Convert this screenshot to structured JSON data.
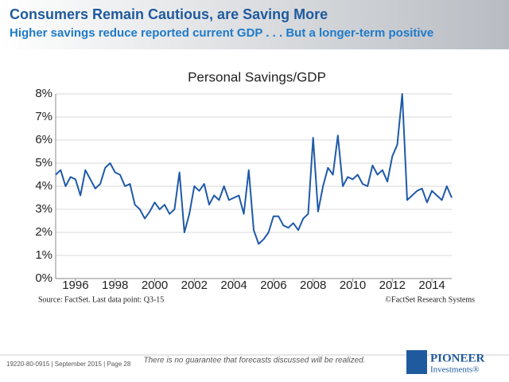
{
  "header": {
    "title": "Consumers Remain Cautious, are Saving More",
    "subtitle": "Higher savings reduce reported current GDP . . . But a longer-term positive"
  },
  "chart_data": {
    "type": "line",
    "title": "Personal Savings/GDP",
    "x": [
      1995,
      1995.25,
      1995.5,
      1995.75,
      1996,
      1996.25,
      1996.5,
      1996.75,
      1997,
      1997.25,
      1997.5,
      1997.75,
      1998,
      1998.25,
      1998.5,
      1998.75,
      1999,
      1999.25,
      1999.5,
      1999.75,
      2000,
      2000.25,
      2000.5,
      2000.75,
      2001,
      2001.25,
      2001.5,
      2001.75,
      2002,
      2002.25,
      2002.5,
      2002.75,
      2003,
      2003.25,
      2003.5,
      2003.75,
      2004,
      2004.25,
      2004.5,
      2004.75,
      2005,
      2005.25,
      2005.5,
      2005.75,
      2006,
      2006.25,
      2006.5,
      2006.75,
      2007,
      2007.25,
      2007.5,
      2007.75,
      2008,
      2008.25,
      2008.5,
      2008.75,
      2009,
      2009.25,
      2009.5,
      2009.75,
      2010,
      2010.25,
      2010.5,
      2010.75,
      2011,
      2011.25,
      2011.5,
      2011.75,
      2012,
      2012.25,
      2012.5,
      2012.75,
      2013,
      2013.25,
      2013.5,
      2013.75,
      2014,
      2014.25,
      2014.5,
      2014.75,
      2015
    ],
    "values": [
      4.5,
      4.7,
      4.0,
      4.4,
      4.3,
      3.6,
      4.7,
      4.3,
      3.9,
      4.1,
      4.8,
      5.0,
      4.6,
      4.5,
      4.0,
      4.1,
      3.2,
      3.0,
      2.6,
      2.9,
      3.3,
      3.0,
      3.2,
      2.8,
      3.0,
      4.6,
      2.0,
      2.8,
      4.0,
      3.8,
      4.1,
      3.2,
      3.6,
      3.4,
      4.0,
      3.4,
      3.5,
      3.6,
      2.8,
      4.7,
      2.1,
      1.5,
      1.7,
      2.0,
      2.7,
      2.7,
      2.3,
      2.2,
      2.4,
      2.1,
      2.6,
      2.8,
      6.1,
      2.9,
      4.0,
      4.8,
      4.5,
      6.2,
      4.0,
      4.4,
      4.3,
      4.5,
      4.1,
      4.0,
      4.9,
      4.5,
      4.7,
      4.2,
      5.3,
      5.8,
      8.0,
      3.4,
      3.6,
      3.8,
      3.9,
      3.3,
      3.8,
      3.6,
      3.4,
      4.0,
      3.5
    ],
    "color": "#1f5aa8",
    "xlim": [
      1995,
      2015
    ],
    "xticks": [
      1996,
      1998,
      2000,
      2002,
      2004,
      2006,
      2008,
      2010,
      2012,
      2014
    ],
    "ylim": [
      0,
      8
    ],
    "yticks": [
      {
        "value": 0,
        "label": "0%"
      },
      {
        "value": 1,
        "label": "1%"
      },
      {
        "value": 2,
        "label": "2%"
      },
      {
        "value": 3,
        "label": "3%"
      },
      {
        "value": 4,
        "label": "4%"
      },
      {
        "value": 5,
        "label": "5%"
      },
      {
        "value": 6,
        "label": "6%"
      },
      {
        "value": 7,
        "label": "7%"
      },
      {
        "value": 8,
        "label": "8%"
      }
    ],
    "grid": true,
    "source": "Source: FactSet. Last data point: Q3-15",
    "credit": "©FactSet Research Systems"
  },
  "footer": {
    "code": "19220-80-0915 | September 2015 | Page 28",
    "disclaimer": "There is no guarantee that forecasts discussed will be realized.",
    "logo": "PIONEER",
    "logo_sub": "Investments®"
  }
}
